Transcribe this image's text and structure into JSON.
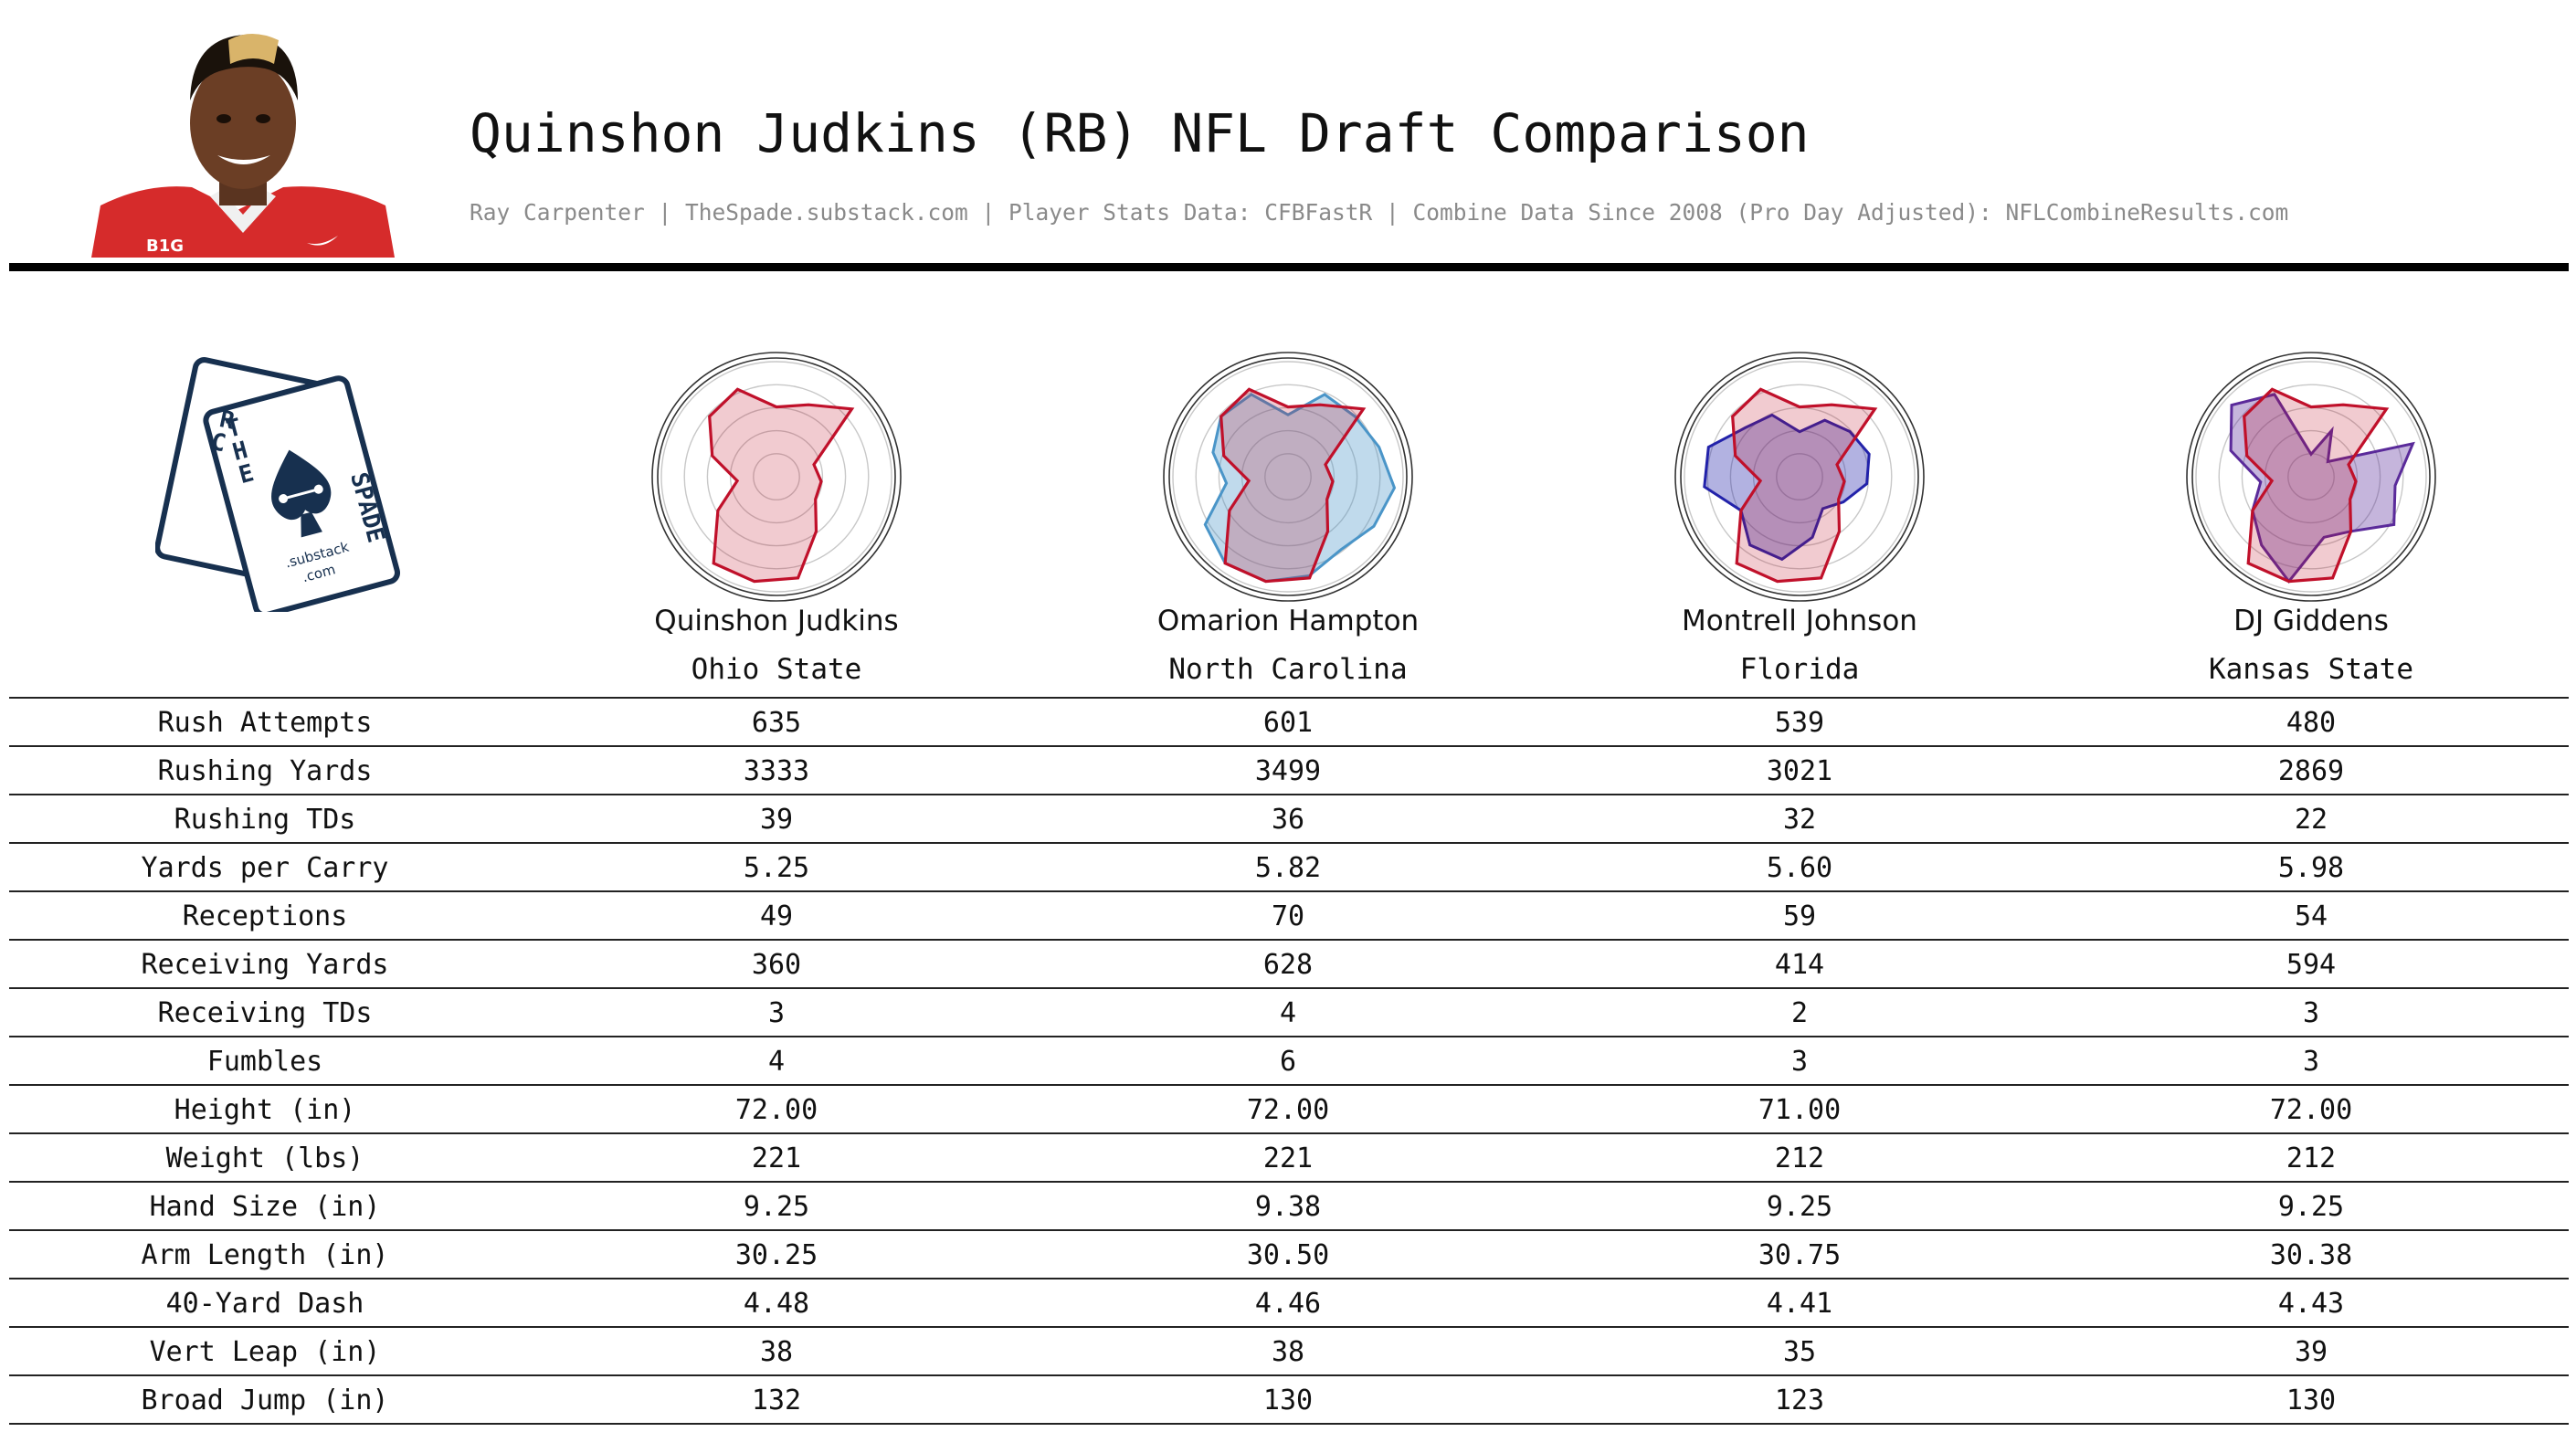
{
  "header": {
    "title": "Quinshon Judkins (RB) NFL Draft Comparison",
    "subtitle": "Ray Carpenter | TheSpade.substack.com | Player Stats Data: CFBFastR | Combine Data Since 2008 (Pro Day Adjusted): NFLCombineResults.com"
  },
  "logo": {
    "letters_left": "RACE",
    "letters_right": "THE SPADE",
    "substack": ".substack",
    "com": ".com"
  },
  "colors": {
    "primary": "#c0102a",
    "primary_fill": "#e8a7ae",
    "hampton": "#4a95c8",
    "johnson": "#2222aa",
    "giddens": "#5a2a9a",
    "grid": "#c8c8c8",
    "text": "#111111",
    "subtitle": "#8a8a8a"
  },
  "players": [
    {
      "name": "Quinshon Judkins",
      "school": "Ohio State"
    },
    {
      "name": "Omarion Hampton",
      "school": "North Carolina"
    },
    {
      "name": "Montrell Johnson",
      "school": "Florida"
    },
    {
      "name": "DJ Giddens",
      "school": "Kansas State"
    }
  ],
  "chart_data": {
    "type": "table",
    "columns": [
      "Quinshon Judkins",
      "Omarion Hampton",
      "Montrell Johnson",
      "DJ Giddens"
    ],
    "rows": [
      {
        "label": "Rush Attempts",
        "values": [
          "635",
          "601",
          "539",
          "480"
        ]
      },
      {
        "label": "Rushing Yards",
        "values": [
          "3333",
          "3499",
          "3021",
          "2869"
        ]
      },
      {
        "label": "Rushing TDs",
        "values": [
          "39",
          "36",
          "32",
          "22"
        ]
      },
      {
        "label": "Yards per Carry",
        "values": [
          "5.25",
          "5.82",
          "5.60",
          "5.98"
        ]
      },
      {
        "label": "Receptions",
        "values": [
          "49",
          "70",
          "59",
          "54"
        ]
      },
      {
        "label": "Receiving Yards",
        "values": [
          "360",
          "628",
          "414",
          "594"
        ]
      },
      {
        "label": "Receiving TDs",
        "values": [
          "3",
          "4",
          "2",
          "3"
        ]
      },
      {
        "label": "Fumbles",
        "values": [
          "4",
          "6",
          "3",
          "3"
        ]
      },
      {
        "label": "Height (in)",
        "values": [
          "72.00",
          "72.00",
          "71.00",
          "72.00"
        ]
      },
      {
        "label": "Weight (lbs)",
        "values": [
          "221",
          "221",
          "212",
          "212"
        ]
      },
      {
        "label": "Hand Size (in)",
        "values": [
          "9.25",
          "9.38",
          "9.25",
          "9.25"
        ]
      },
      {
        "label": "Arm Length (in)",
        "values": [
          "30.25",
          "30.50",
          "30.75",
          "30.38"
        ]
      },
      {
        "label": "40-Yard Dash",
        "values": [
          "4.48",
          "4.46",
          "4.41",
          "4.43"
        ]
      },
      {
        "label": "Vert Leap (in)",
        "values": [
          "38",
          "38",
          "35",
          "39"
        ]
      },
      {
        "label": "Broad Jump (in)",
        "values": [
          "132",
          "130",
          "123",
          "130"
        ]
      }
    ],
    "radar": {
      "type": "radar",
      "rings": 5,
      "axes_count": 15,
      "scale": [
        0,
        1
      ],
      "series": [
        {
          "player": "Quinshon Judkins",
          "values": [
            0.62,
            0.7,
            0.9,
            0.35,
            0.4,
            0.4,
            0.6,
            0.92,
            0.95,
            0.95,
            0.6,
            0.35,
            0.6,
            0.8,
            0.85
          ]
        },
        {
          "player": "Omarion Hampton",
          "values": [
            0.55,
            0.8,
            0.8,
            0.85,
            0.95,
            0.88,
            0.8,
            0.9,
            0.95,
            0.95,
            0.85,
            0.55,
            0.7,
            0.8,
            0.8
          ]
        },
        {
          "player": "Montrell Johnson",
          "values": [
            0.4,
            0.55,
            0.6,
            0.65,
            0.6,
            0.45,
            0.35,
            0.55,
            0.75,
            0.75,
            0.6,
            0.85,
            0.85,
            0.65,
            0.6
          ]
        },
        {
          "player": "DJ Giddens",
          "values": [
            0.2,
            0.45,
            0.2,
            0.95,
            0.75,
            0.85,
            0.6,
            0.55,
            0.95,
            0.75,
            0.6,
            0.45,
            0.75,
            0.95,
            0.8
          ]
        }
      ]
    }
  }
}
